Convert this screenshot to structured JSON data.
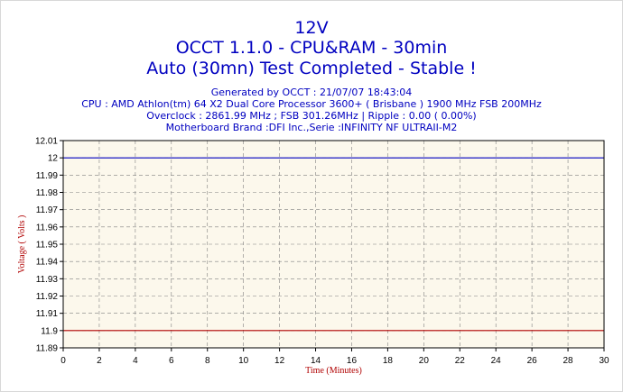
{
  "header": {
    "title": "12V",
    "subtitle": "OCCT 1.1.0 - CPU&RAM - 30min",
    "status": "Auto (30mn) Test Completed - Stable !",
    "info_lines": [
      "Generated by OCCT : 21/07/07 18:43:04",
      "CPU : AMD Athlon(tm) 64 X2 Dual Core Processor 3600+ ( Brisbane ) 1900 MHz FSB 200MHz",
      "Overclock : 2861.99 MHz ; FSB 301.26MHz | Ripple : 0.00 ( 0.00%)",
      "Motherboard Brand :DFI Inc.,Serie :INFINITY NF ULTRAII-M2"
    ]
  },
  "colors": {
    "title_text": "#0000c0",
    "plot_background": "#fcf8ec",
    "grid": "#808080",
    "axis_label": "#b00000",
    "voltage_series": "#0000c0",
    "min_reference": "#b00000"
  },
  "chart_data": {
    "type": "line",
    "title": "12V",
    "xlabel": "Time (Minutes)",
    "ylabel": "Voltage ( Volts )",
    "xlim": [
      0,
      30
    ],
    "ylim": [
      11.89,
      12.01
    ],
    "x_ticks": [
      0,
      2,
      4,
      6,
      8,
      10,
      12,
      14,
      16,
      18,
      20,
      22,
      24,
      26,
      28,
      30
    ],
    "y_ticks": [
      "11.89",
      "11.9",
      "11.91",
      "11.92",
      "11.93",
      "11.94",
      "11.95",
      "11.96",
      "11.97",
      "11.98",
      "11.99",
      "12",
      "12.01"
    ],
    "grid": true,
    "series": [
      {
        "color": "#0000c0",
        "x": [
          0,
          30
        ],
        "y": [
          12,
          12
        ]
      },
      {
        "color": "#b00000",
        "x": [
          0,
          30
        ],
        "y": [
          11.9,
          11.9
        ]
      }
    ]
  }
}
